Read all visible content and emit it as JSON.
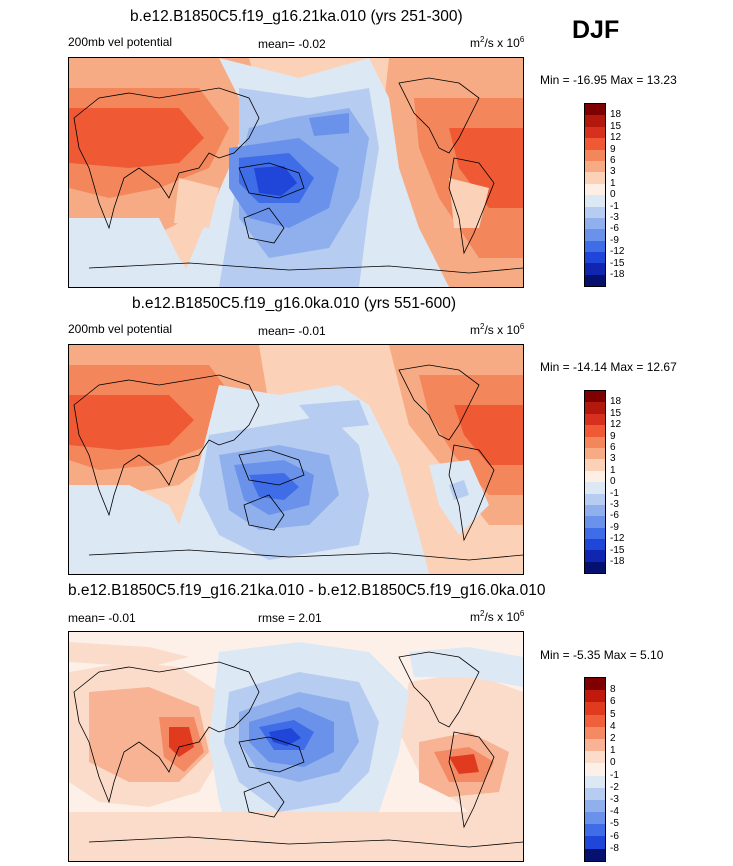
{
  "header": {
    "season": "DJF"
  },
  "panels": [
    {
      "title": "b.e12.B1850C5.f19_g16.21ka.010 (yrs 251-300)",
      "left_label": "200mb vel potential",
      "center_label": "mean=  -0.02",
      "units_base": "m",
      "units_sup1": "2",
      "units_mid": "/s x 10",
      "units_sup2": "6",
      "minmax": "Min = -16.95 Max =  13.23",
      "colorbar_levels": [
        "18",
        "15",
        "12",
        "9",
        "6",
        "3",
        "1",
        "0",
        "-1",
        "-3",
        "-6",
        "-9",
        "-12",
        "-15",
        "-18"
      ],
      "colorbar_colors": [
        "#7f0000",
        "#b2180b",
        "#d7301f",
        "#ef5a34",
        "#f4865c",
        "#f7ab85",
        "#fbd2b7",
        "#fdefe6",
        "#dde8f5",
        "#b6ccf0",
        "#8fb0ec",
        "#6b92ea",
        "#3f6de8",
        "#1f46d8",
        "#1126b0",
        "#06106e"
      ]
    },
    {
      "title": "b.e12.B1850C5.f19_g16.0ka.010 (yrs 551-600)",
      "left_label": "200mb vel potential",
      "center_label": "mean=  -0.01",
      "units_base": "m",
      "units_sup1": "2",
      "units_mid": "/s x 10",
      "units_sup2": "6",
      "minmax": "Min = -14.14 Max =  12.67",
      "colorbar_levels": [
        "18",
        "15",
        "12",
        "9",
        "6",
        "3",
        "1",
        "0",
        "-1",
        "-3",
        "-6",
        "-9",
        "-12",
        "-15",
        "-18"
      ],
      "colorbar_colors": [
        "#7f0000",
        "#b2180b",
        "#d7301f",
        "#ef5a34",
        "#f4865c",
        "#f7ab85",
        "#fbd2b7",
        "#fdefe6",
        "#dde8f5",
        "#b6ccf0",
        "#8fb0ec",
        "#6b92ea",
        "#3f6de8",
        "#1f46d8",
        "#1126b0",
        "#06106e"
      ]
    },
    {
      "title": "b.e12.B1850C5.f19_g16.21ka.010 - b.e12.B1850C5.f19_g16.0ka.010",
      "left_label": "mean=  -0.01",
      "center_label": "rmse =   2.01",
      "units_base": "m",
      "units_sup1": "2",
      "units_mid": "/s x 10",
      "units_sup2": "6",
      "minmax": "Min =  -5.35 Max =   5.10",
      "colorbar_levels": [
        "8",
        "6",
        "5",
        "4",
        "2",
        "1",
        "0",
        "-1",
        "-2",
        "-3",
        "-4",
        "-5",
        "-6",
        "-8"
      ],
      "colorbar_colors": [
        "#7f0000",
        "#c0190e",
        "#e03a1f",
        "#f0603a",
        "#f48a63",
        "#f7b393",
        "#fbdccb",
        "#fdf0e8",
        "#dde8f5",
        "#b6ccf0",
        "#8fb0ec",
        "#6b92ea",
        "#3f6de8",
        "#1f46d8",
        "#06106e"
      ]
    }
  ],
  "chart_data": {
    "type": "heatmap",
    "variable": "200mb velocity potential",
    "season": "DJF",
    "units": "m2/s x 10^6",
    "maps": [
      {
        "title": "b.e12.B1850C5.f19_g16.21ka.010 (yrs 251-300)",
        "mean": -0.02,
        "min": -16.95,
        "max": 13.23,
        "levels": [
          -18,
          -15,
          -12,
          -9,
          -6,
          -3,
          -1,
          0,
          1,
          3,
          6,
          9,
          12,
          15,
          18
        ]
      },
      {
        "title": "b.e12.B1850C5.f19_g16.0ka.010 (yrs 551-600)",
        "mean": -0.01,
        "min": -14.14,
        "max": 12.67,
        "levels": [
          -18,
          -15,
          -12,
          -9,
          -6,
          -3,
          -1,
          0,
          1,
          3,
          6,
          9,
          12,
          15,
          18
        ]
      },
      {
        "title": "b.e12.B1850C5.f19_g16.21ka.010 - b.e12.B1850C5.f19_g16.0ka.010",
        "mean": -0.01,
        "rmse": 2.01,
        "min": -5.35,
        "max": 5.1,
        "levels": [
          -8,
          -6,
          -5,
          -4,
          -3,
          -2,
          -1,
          0,
          1,
          2,
          4,
          5,
          6,
          8
        ]
      }
    ]
  }
}
